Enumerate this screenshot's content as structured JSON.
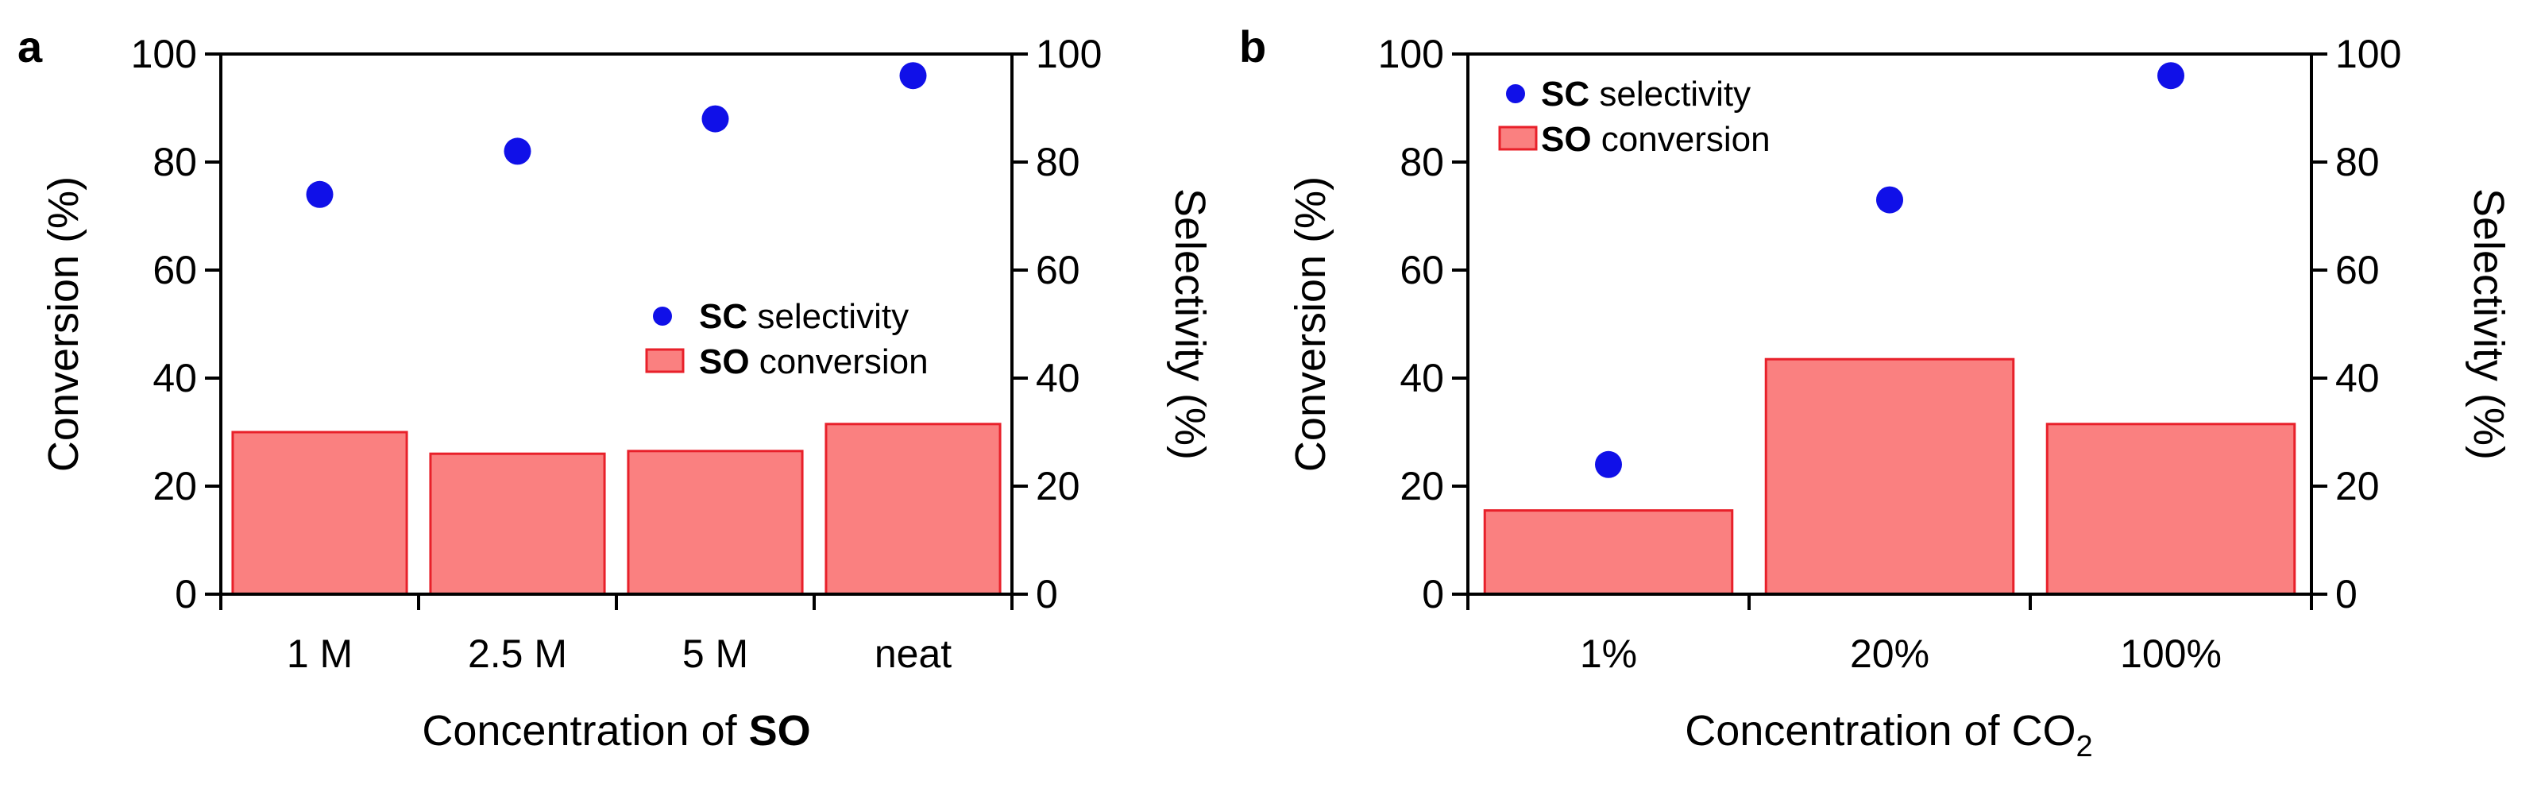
{
  "chart_data": [
    {
      "panel": "a",
      "type": "bar",
      "categories": [
        "1 M",
        "2.5 M",
        "5 M",
        "neat"
      ],
      "series": [
        {
          "name": "SO conversion",
          "kind": "bar",
          "axis": "left",
          "values": [
            30,
            26,
            26.5,
            31.5
          ]
        },
        {
          "name": "SC selectivity",
          "kind": "scatter",
          "axis": "right",
          "values": [
            74,
            82,
            88,
            96
          ]
        }
      ],
      "xlabel_prefix": "Concentration of ",
      "xlabel_bold": "SO",
      "ylabel": "Conversion (%)",
      "ylabel_right": "Selectivity (%)",
      "ylim": [
        0,
        100
      ],
      "yticks": [
        "0",
        "20",
        "40",
        "60",
        "80",
        "100"
      ],
      "legend": [
        {
          "bold": "SC",
          "rest": " selectivity"
        },
        {
          "bold": "SO",
          "rest": " conversion"
        }
      ],
      "legend_position": "middle-right"
    },
    {
      "panel": "b",
      "type": "bar",
      "categories": [
        "1%",
        "20%",
        "100%"
      ],
      "series": [
        {
          "name": "SO conversion",
          "kind": "bar",
          "axis": "left",
          "values": [
            15.5,
            43.5,
            31.5
          ]
        },
        {
          "name": "SC selectivity",
          "kind": "scatter",
          "axis": "right",
          "values": [
            24,
            73,
            96
          ]
        }
      ],
      "xlabel_prefix": "Concentration of CO",
      "xlabel_sub": "2",
      "ylabel": "Conversion (%)",
      "ylabel_right": "Selectivity (%)",
      "ylim": [
        0,
        100
      ],
      "yticks": [
        "0",
        "20",
        "40",
        "60",
        "80",
        "100"
      ],
      "legend": [
        {
          "bold": "SC",
          "rest": " selectivity"
        },
        {
          "bold": "SO",
          "rest": " conversion"
        }
      ],
      "legend_position": "top-left"
    }
  ],
  "colors": {
    "bar_fill": "#fa8080",
    "bar_edge": "#e8202a",
    "marker": "#1010e8"
  }
}
